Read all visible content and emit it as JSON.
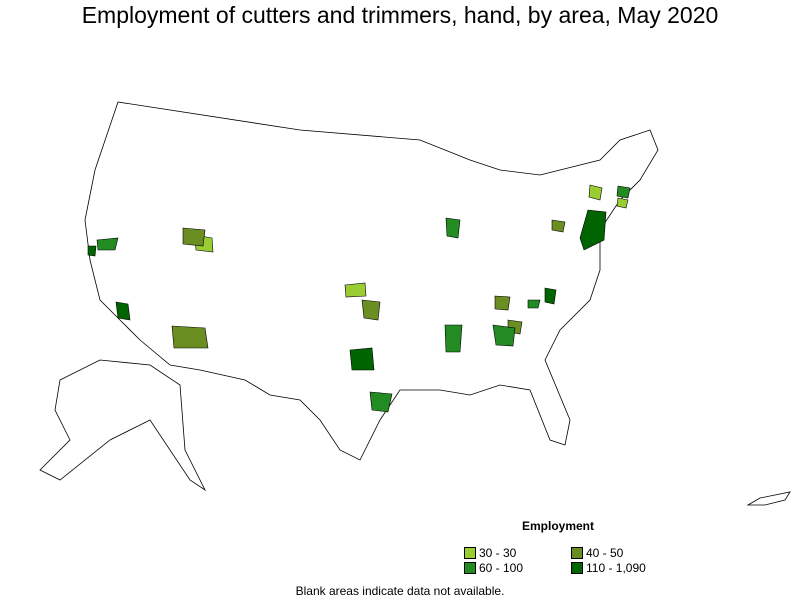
{
  "title": "Employment of cutters and trimmers, hand, by area, May 2020",
  "legend": {
    "title": "Employment",
    "items": [
      {
        "label": "30 - 30",
        "color": "#9acd32"
      },
      {
        "label": "40 - 50",
        "color": "#6b8e23"
      },
      {
        "label": "60 - 100",
        "color": "#228b22"
      },
      {
        "label": "110 - 1,090",
        "color": "#006400"
      }
    ]
  },
  "note": "Blank areas indicate data not available."
}
